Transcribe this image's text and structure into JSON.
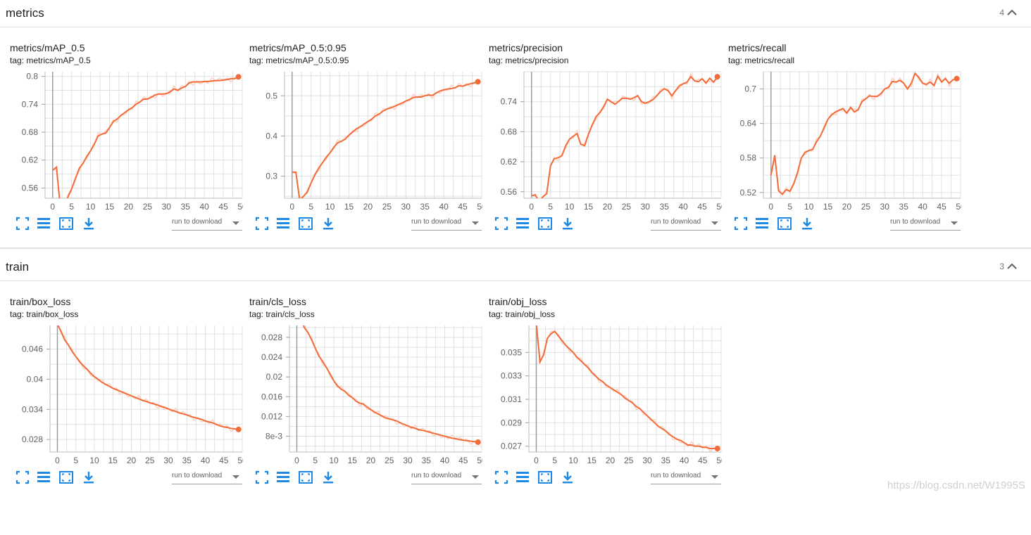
{
  "sections": [
    {
      "title": "metrics",
      "count": "4"
    },
    {
      "title": "train",
      "count": "3"
    }
  ],
  "toolbar": {
    "run_select_label": "run to download",
    "icons": [
      "fullscreen-icon",
      "data-selection-icon",
      "fit-domain-icon",
      "download-icon"
    ]
  },
  "colors": {
    "line": "#f26b38",
    "smoothed_raw": "#fbd3c4",
    "grid": "#e0e0e0",
    "axis": "#757575",
    "accent": "#1e88e5"
  },
  "cards": [
    {
      "title": "metrics/mAP_0.5",
      "tag": "tag: metrics/mAP_0.5"
    },
    {
      "title": "metrics/mAP_0.5:0.95",
      "tag": "tag: metrics/mAP_0.5:0.95"
    },
    {
      "title": "metrics/precision",
      "tag": "tag: metrics/precision"
    },
    {
      "title": "metrics/recall",
      "tag": "tag: metrics/recall"
    },
    {
      "title": "train/box_loss",
      "tag": "tag: train/box_loss"
    },
    {
      "title": "train/cls_loss",
      "tag": "tag: train/cls_loss"
    },
    {
      "title": "train/obj_loss",
      "tag": "tag: train/obj_loss"
    }
  ],
  "watermark": "https://blog.csdn.net/W1995S",
  "chart_data": [
    {
      "type": "line",
      "title": "metrics/mAP_0.5",
      "xlim": [
        -2,
        50
      ],
      "ylim": [
        0.538,
        0.81
      ],
      "xticks": [
        "0",
        "5",
        "10",
        "15",
        "20",
        "25",
        "30",
        "35",
        "40",
        "45",
        "50"
      ],
      "yticks": [
        "0.56",
        "0.62",
        "0.68",
        "0.74",
        "0.8"
      ],
      "x": [
        0,
        1,
        2,
        3,
        4,
        5,
        6,
        7,
        8,
        9,
        10,
        11,
        12,
        13,
        14,
        15,
        16,
        17,
        18,
        19,
        20,
        21,
        22,
        23,
        24,
        25,
        26,
        27,
        28,
        29,
        30,
        31,
        32,
        33,
        34,
        35,
        36,
        37,
        38,
        39,
        40,
        41,
        42,
        43,
        44,
        45,
        46,
        47,
        48,
        49
      ],
      "y": [
        0.598,
        0.605,
        0.52,
        0.52,
        0.54,
        0.558,
        0.58,
        0.602,
        0.613,
        0.628,
        0.64,
        0.655,
        0.672,
        0.676,
        0.678,
        0.69,
        0.703,
        0.708,
        0.716,
        0.722,
        0.728,
        0.733,
        0.74,
        0.745,
        0.751,
        0.751,
        0.755,
        0.76,
        0.762,
        0.762,
        0.763,
        0.767,
        0.773,
        0.77,
        0.775,
        0.778,
        0.786,
        0.788,
        0.788,
        0.788,
        0.789,
        0.789,
        0.79,
        0.791,
        0.791,
        0.792,
        0.793,
        0.795,
        0.795,
        0.799
      ]
    },
    {
      "type": "line",
      "title": "metrics/mAP_0.5:0.95",
      "xlim": [
        -2,
        50
      ],
      "ylim": [
        0.245,
        0.56
      ],
      "xticks": [
        "0",
        "5",
        "10",
        "15",
        "20",
        "25",
        "30",
        "35",
        "40",
        "45",
        "50"
      ],
      "yticks": [
        "0.3",
        "0.4",
        "0.5"
      ],
      "x": [
        0,
        1,
        2,
        3,
        4,
        5,
        6,
        7,
        8,
        9,
        10,
        11,
        12,
        13,
        14,
        15,
        16,
        17,
        18,
        19,
        20,
        21,
        22,
        23,
        24,
        25,
        26,
        27,
        28,
        29,
        30,
        31,
        32,
        33,
        34,
        35,
        36,
        37,
        38,
        39,
        40,
        41,
        42,
        43,
        44,
        45,
        46,
        47,
        48,
        49
      ],
      "y": [
        0.31,
        0.31,
        0.24,
        0.25,
        0.26,
        0.283,
        0.303,
        0.32,
        0.333,
        0.347,
        0.358,
        0.372,
        0.383,
        0.387,
        0.392,
        0.402,
        0.41,
        0.418,
        0.423,
        0.43,
        0.436,
        0.442,
        0.45,
        0.455,
        0.462,
        0.467,
        0.47,
        0.474,
        0.478,
        0.482,
        0.487,
        0.491,
        0.496,
        0.497,
        0.497,
        0.5,
        0.502,
        0.501,
        0.507,
        0.512,
        0.515,
        0.517,
        0.518,
        0.52,
        0.525,
        0.524,
        0.527,
        0.53,
        0.532,
        0.535
      ]
    },
    {
      "type": "line",
      "title": "metrics/precision",
      "xlim": [
        -2,
        50
      ],
      "ylim": [
        0.547,
        0.8
      ],
      "xticks": [
        "0",
        "5",
        "10",
        "15",
        "20",
        "25",
        "30",
        "35",
        "40",
        "45",
        "50"
      ],
      "yticks": [
        "0.56",
        "0.62",
        "0.68",
        "0.74"
      ],
      "x": [
        0,
        1,
        2,
        3,
        4,
        5,
        6,
        7,
        8,
        9,
        10,
        11,
        12,
        13,
        14,
        15,
        16,
        17,
        18,
        19,
        20,
        21,
        22,
        23,
        24,
        25,
        26,
        27,
        28,
        29,
        30,
        31,
        32,
        33,
        34,
        35,
        36,
        37,
        38,
        39,
        40,
        41,
        42,
        43,
        44,
        45,
        46,
        47,
        48,
        49
      ],
      "y": [
        0.552,
        0.554,
        0.54,
        0.55,
        0.556,
        0.612,
        0.626,
        0.628,
        0.632,
        0.652,
        0.665,
        0.671,
        0.676,
        0.655,
        0.652,
        0.675,
        0.693,
        0.71,
        0.718,
        0.73,
        0.745,
        0.74,
        0.735,
        0.741,
        0.747,
        0.747,
        0.745,
        0.748,
        0.752,
        0.74,
        0.737,
        0.74,
        0.744,
        0.752,
        0.76,
        0.766,
        0.762,
        0.752,
        0.762,
        0.772,
        0.776,
        0.779,
        0.79,
        0.782,
        0.78,
        0.786,
        0.777,
        0.787,
        0.779,
        0.79
      ]
    },
    {
      "type": "line",
      "title": "metrics/recall",
      "xlim": [
        -2,
        50
      ],
      "ylim": [
        0.51,
        0.73
      ],
      "xticks": [
        "0",
        "5",
        "10",
        "15",
        "20",
        "25",
        "30",
        "35",
        "40",
        "45",
        "50"
      ],
      "yticks": [
        "0.52",
        "0.58",
        "0.64",
        "0.7"
      ],
      "x": [
        0,
        1,
        2,
        3,
        4,
        5,
        6,
        7,
        8,
        9,
        10,
        11,
        12,
        13,
        14,
        15,
        16,
        17,
        18,
        19,
        20,
        21,
        22,
        23,
        24,
        25,
        26,
        27,
        28,
        29,
        30,
        31,
        32,
        33,
        34,
        35,
        36,
        37,
        38,
        39,
        40,
        41,
        42,
        43,
        44,
        45,
        46,
        47,
        48,
        49
      ],
      "y": [
        0.55,
        0.585,
        0.523,
        0.517,
        0.525,
        0.522,
        0.535,
        0.555,
        0.58,
        0.59,
        0.593,
        0.595,
        0.608,
        0.618,
        0.632,
        0.647,
        0.655,
        0.66,
        0.663,
        0.666,
        0.658,
        0.668,
        0.66,
        0.664,
        0.678,
        0.683,
        0.688,
        0.687,
        0.687,
        0.692,
        0.7,
        0.703,
        0.713,
        0.712,
        0.715,
        0.71,
        0.7,
        0.71,
        0.727,
        0.72,
        0.71,
        0.708,
        0.712,
        0.706,
        0.722,
        0.712,
        0.718,
        0.71,
        0.716,
        0.718
      ]
    },
    {
      "type": "line",
      "title": "train/box_loss",
      "xlim": [
        -2,
        50
      ],
      "ylim": [
        0.0255,
        0.0507
      ],
      "xticks": [
        "0",
        "5",
        "10",
        "15",
        "20",
        "25",
        "30",
        "35",
        "40",
        "45",
        "50"
      ],
      "yticks": [
        "0.028",
        "0.034",
        "0.04",
        "0.046"
      ],
      "x": [
        0,
        1,
        2,
        3,
        4,
        5,
        6,
        7,
        8,
        9,
        10,
        11,
        12,
        13,
        14,
        15,
        16,
        17,
        18,
        19,
        20,
        21,
        22,
        23,
        24,
        25,
        26,
        27,
        28,
        29,
        30,
        31,
        32,
        33,
        34,
        35,
        36,
        37,
        38,
        39,
        40,
        41,
        42,
        43,
        44,
        45,
        46,
        47,
        48,
        49
      ],
      "y": [
        0.051,
        0.0495,
        0.0478,
        0.0468,
        0.0455,
        0.0445,
        0.0435,
        0.0427,
        0.042,
        0.0412,
        0.0405,
        0.04,
        0.0394,
        0.039,
        0.0386,
        0.0382,
        0.0379,
        0.0376,
        0.0373,
        0.037,
        0.0367,
        0.0364,
        0.0361,
        0.0358,
        0.0356,
        0.0353,
        0.0351,
        0.0349,
        0.0346,
        0.0344,
        0.0341,
        0.0338,
        0.0336,
        0.0333,
        0.0331,
        0.0329,
        0.0326,
        0.0324,
        0.0322,
        0.032,
        0.0317,
        0.0315,
        0.0313,
        0.031,
        0.0307,
        0.0305,
        0.0304,
        0.0302,
        0.0301,
        0.03
      ]
    },
    {
      "type": "line",
      "title": "train/cls_loss",
      "xlim": [
        -2,
        50
      ],
      "ylim": [
        0.0048,
        0.0304
      ],
      "xticks": [
        "0",
        "5",
        "10",
        "15",
        "20",
        "25",
        "30",
        "35",
        "40",
        "45",
        "50"
      ],
      "yticks": [
        "8e-3",
        "0.012",
        "0.016",
        "0.02",
        "0.024",
        "0.028"
      ],
      "x": [
        0,
        1,
        2,
        3,
        4,
        5,
        6,
        7,
        8,
        9,
        10,
        11,
        12,
        13,
        14,
        15,
        16,
        17,
        18,
        19,
        20,
        21,
        22,
        23,
        24,
        25,
        26,
        27,
        28,
        29,
        30,
        31,
        32,
        33,
        34,
        35,
        36,
        37,
        38,
        39,
        40,
        41,
        42,
        43,
        44,
        45,
        46,
        47,
        48,
        49
      ],
      "y": [
        0.034,
        0.032,
        0.03,
        0.029,
        0.0275,
        0.0258,
        0.0242,
        0.0231,
        0.0219,
        0.0206,
        0.0192,
        0.0182,
        0.0175,
        0.0171,
        0.0163,
        0.0158,
        0.0151,
        0.0147,
        0.0145,
        0.0139,
        0.0134,
        0.0129,
        0.0125,
        0.0121,
        0.0117,
        0.0115,
        0.0113,
        0.0111,
        0.0107,
        0.0104,
        0.0101,
        0.0098,
        0.0096,
        0.0093,
        0.0092,
        0.009,
        0.0088,
        0.0086,
        0.0084,
        0.0082,
        0.008,
        0.0078,
        0.0076,
        0.0075,
        0.0073,
        0.0072,
        0.0071,
        0.007,
        0.0069,
        0.0068
      ]
    },
    {
      "type": "line",
      "title": "train/obj_loss",
      "xlim": [
        -2,
        50
      ],
      "ylim": [
        0.0265,
        0.0373
      ],
      "xticks": [
        "0",
        "5",
        "10",
        "15",
        "20",
        "25",
        "30",
        "35",
        "40",
        "45",
        "50"
      ],
      "yticks": [
        "0.027",
        "0.029",
        "0.031",
        "0.033",
        "0.035"
      ],
      "x": [
        0,
        1,
        2,
        3,
        4,
        5,
        6,
        7,
        8,
        9,
        10,
        11,
        12,
        13,
        14,
        15,
        16,
        17,
        18,
        19,
        20,
        21,
        22,
        23,
        24,
        25,
        26,
        27,
        28,
        29,
        30,
        31,
        32,
        33,
        34,
        35,
        36,
        37,
        38,
        39,
        40,
        41,
        42,
        43,
        44,
        45,
        46,
        47,
        48,
        49
      ],
      "y": [
        0.0375,
        0.0342,
        0.0348,
        0.0362,
        0.0366,
        0.0368,
        0.0364,
        0.036,
        0.0356,
        0.0353,
        0.035,
        0.0346,
        0.0343,
        0.034,
        0.0337,
        0.0333,
        0.033,
        0.0327,
        0.0325,
        0.0322,
        0.032,
        0.0318,
        0.0316,
        0.0314,
        0.0311,
        0.0309,
        0.0307,
        0.0304,
        0.0302,
        0.0299,
        0.0296,
        0.0293,
        0.029,
        0.0287,
        0.0285,
        0.0283,
        0.028,
        0.0278,
        0.0276,
        0.0275,
        0.0273,
        0.0271,
        0.0271,
        0.027,
        0.027,
        0.0269,
        0.0269,
        0.0268,
        0.0268,
        0.0268
      ]
    }
  ]
}
